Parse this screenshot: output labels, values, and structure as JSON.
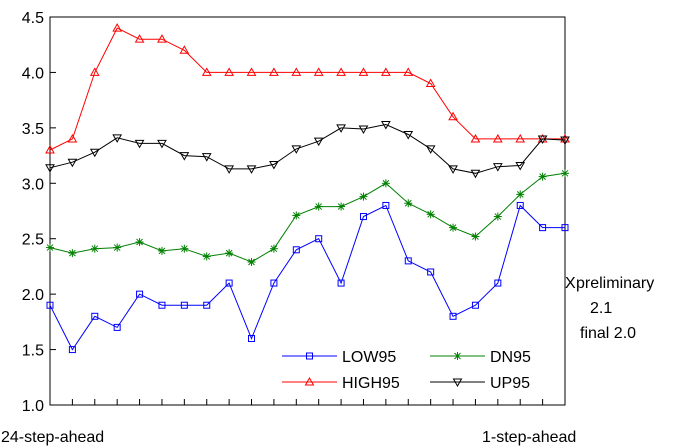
{
  "chart_data": {
    "type": "line",
    "title": "",
    "xlabel": "",
    "ylabel": "",
    "ylim": [
      1.0,
      4.5
    ],
    "yticks": [
      "1.0",
      "1.5",
      "2.0",
      "2.5",
      "3.0",
      "3.5",
      "4.0",
      "4.5"
    ],
    "x_count": 24,
    "x_label_start": "24-step-ahead",
    "x_label_end": "1-step-ahead",
    "grid": false,
    "legend_position": "bottom-right",
    "series": [
      {
        "name": "LOW95",
        "color": "#0000ff",
        "marker": "square",
        "values": [
          1.9,
          1.5,
          1.8,
          1.7,
          2.0,
          1.9,
          1.9,
          1.9,
          2.1,
          1.6,
          2.1,
          2.4,
          2.5,
          2.1,
          2.7,
          2.8,
          2.3,
          2.2,
          1.8,
          1.9,
          2.1,
          2.8,
          2.6,
          2.6
        ]
      },
      {
        "name": "DN95",
        "color": "#008000",
        "marker": "star",
        "values": [
          2.42,
          2.37,
          2.41,
          2.42,
          2.47,
          2.39,
          2.41,
          2.34,
          2.37,
          2.29,
          2.41,
          2.71,
          2.79,
          2.79,
          2.88,
          3.0,
          2.82,
          2.72,
          2.6,
          2.52,
          2.7,
          2.9,
          3.06,
          3.09
        ]
      },
      {
        "name": "HIGH95",
        "color": "#ff0000",
        "marker": "triangle-up",
        "values": [
          3.3,
          3.4,
          4.0,
          4.4,
          4.3,
          4.3,
          4.2,
          4.0,
          4.0,
          4.0,
          4.0,
          4.0,
          4.0,
          4.0,
          4.0,
          4.0,
          4.0,
          3.9,
          3.6,
          3.4,
          3.4,
          3.4,
          3.4,
          3.4
        ]
      },
      {
        "name": "UP95",
        "color": "#000000",
        "marker": "triangle-down",
        "values": [
          3.14,
          3.19,
          3.28,
          3.41,
          3.36,
          3.36,
          3.25,
          3.24,
          3.13,
          3.13,
          3.17,
          3.31,
          3.38,
          3.5,
          3.49,
          3.53,
          3.44,
          3.31,
          3.13,
          3.09,
          3.15,
          3.16,
          3.4,
          3.39
        ]
      }
    ],
    "annotations": [
      {
        "marker": "X",
        "lines": [
          "preliminary",
          "2.1",
          "final 2.0"
        ]
      }
    ]
  }
}
